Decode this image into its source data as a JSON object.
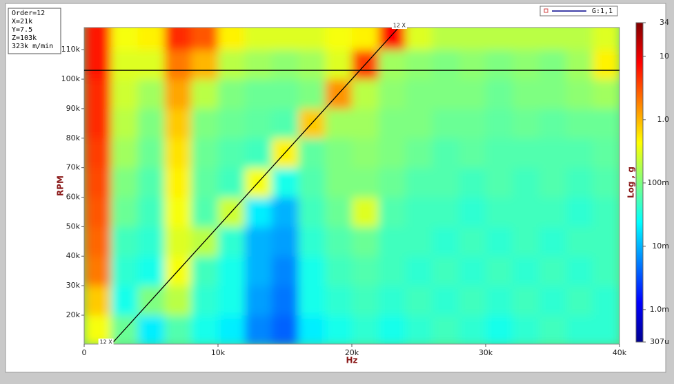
{
  "chart_data": {
    "type": "heatmap",
    "info_lines": [
      "Order=12",
      "X=21k",
      "Y=7.5",
      "Z=103k",
      "323k m/min"
    ],
    "legend": {
      "name": "G:1,1",
      "color": "#00008b"
    },
    "xlabel": "Hz",
    "ylabel": "RPM",
    "zlabel": "Log , g",
    "xlim": [
      0,
      40000
    ],
    "ylim": [
      10200,
      117500
    ],
    "xticks": [
      0,
      {
        "value": 10000,
        "label": "10k"
      },
      {
        "value": 20000,
        "label": "20k"
      },
      {
        "value": 30000,
        "label": "30k"
      },
      {
        "value": 40000,
        "label": "40k"
      }
    ],
    "yticks": [
      {
        "value": 20000,
        "label": "20k"
      },
      {
        "value": 30000,
        "label": "30k"
      },
      {
        "value": 40000,
        "label": "40k"
      },
      {
        "value": 50000,
        "label": "50k"
      },
      {
        "value": 60000,
        "label": "60k"
      },
      {
        "value": 70000,
        "label": "70k"
      },
      {
        "value": 80000,
        "label": "80k"
      },
      {
        "value": 90000,
        "label": "90k"
      },
      {
        "value": 100000,
        "label": "100k"
      },
      {
        "value": 110000,
        "label": "110k"
      }
    ],
    "zscale": "log",
    "zlim": [
      0.000307,
      34
    ],
    "zticks": [
      34,
      10,
      {
        "value": 1,
        "label": "1.0"
      },
      {
        "value": 0.1,
        "label": "100m"
      },
      {
        "value": 0.01,
        "label": "10m"
      },
      {
        "value": 0.001,
        "label": "1.0m"
      },
      {
        "value": 0.000307,
        "label": "307u"
      }
    ],
    "x_bins": [
      0,
      2000,
      4000,
      6000,
      8000,
      10000,
      12000,
      14000,
      16000,
      18000,
      20000,
      22000,
      24000,
      26000,
      28000,
      30000,
      32000,
      34000,
      36000,
      38000,
      40000
    ],
    "y_bins": [
      10000,
      20000,
      30000,
      40000,
      50000,
      60000,
      70000,
      80000,
      90000,
      100000,
      110000,
      120000
    ],
    "z": [
      [
        0.4,
        0.08,
        0.02,
        0.06,
        0.03,
        0.02,
        0.006,
        0.004,
        0.02,
        0.03,
        0.04,
        0.03,
        0.04,
        0.05,
        0.04,
        0.03,
        0.04,
        0.05,
        0.04,
        0.04
      ],
      [
        0.8,
        0.03,
        0.1,
        0.2,
        0.04,
        0.03,
        0.008,
        0.005,
        0.03,
        0.04,
        0.05,
        0.04,
        0.05,
        0.04,
        0.05,
        0.04,
        0.05,
        0.04,
        0.05,
        0.04
      ],
      [
        2,
        0.04,
        0.03,
        0.4,
        0.05,
        0.03,
        0.01,
        0.006,
        0.03,
        0.05,
        0.06,
        0.05,
        0.04,
        0.05,
        0.04,
        0.05,
        0.04,
        0.05,
        0.04,
        0.05
      ],
      [
        2.5,
        0.05,
        0.04,
        0.3,
        0.2,
        0.04,
        0.01,
        0.008,
        0.04,
        0.06,
        0.08,
        0.05,
        0.05,
        0.04,
        0.05,
        0.04,
        0.05,
        0.04,
        0.05,
        0.05
      ],
      [
        3,
        0.08,
        0.05,
        0.4,
        0.06,
        0.25,
        0.02,
        0.01,
        0.05,
        0.08,
        0.3,
        0.06,
        0.05,
        0.05,
        0.04,
        0.05,
        0.05,
        0.05,
        0.04,
        0.05
      ],
      [
        3.5,
        0.1,
        0.06,
        0.5,
        0.07,
        0.05,
        0.4,
        0.03,
        0.06,
        0.1,
        0.1,
        0.08,
        0.06,
        0.06,
        0.05,
        0.06,
        0.05,
        0.06,
        0.05,
        0.06
      ],
      [
        4,
        0.15,
        0.08,
        0.6,
        0.08,
        0.06,
        0.05,
        0.5,
        0.07,
        0.1,
        0.12,
        0.1,
        0.08,
        0.06,
        0.07,
        0.06,
        0.06,
        0.06,
        0.06,
        0.07
      ],
      [
        5,
        0.2,
        0.1,
        0.8,
        0.1,
        0.08,
        0.07,
        0.06,
        0.8,
        0.15,
        0.15,
        0.1,
        0.1,
        0.08,
        0.08,
        0.07,
        0.08,
        0.07,
        0.08,
        0.08
      ],
      [
        5,
        0.25,
        0.15,
        1.2,
        0.2,
        0.1,
        0.08,
        0.08,
        0.1,
        1.5,
        0.2,
        0.12,
        0.1,
        0.1,
        0.1,
        0.08,
        0.1,
        0.1,
        0.12,
        0.15
      ],
      [
        6,
        0.3,
        0.3,
        2,
        1,
        0.2,
        0.15,
        0.12,
        0.15,
        0.3,
        4,
        0.15,
        0.12,
        0.1,
        0.12,
        0.1,
        0.12,
        0.1,
        0.15,
        0.5
      ],
      [
        6,
        0.4,
        0.5,
        5,
        3,
        0.5,
        0.3,
        0.3,
        0.3,
        0.4,
        0.5,
        8,
        0.3,
        0.2,
        0.2,
        0.2,
        0.2,
        0.2,
        0.2,
        0.3
      ]
    ],
    "order_line": {
      "label": "12 X",
      "x": [
        2040,
        23500
      ],
      "y": [
        10200,
        117500
      ],
      "color": "#000000"
    },
    "cursor": {
      "y": 103000,
      "color": "#000000"
    }
  }
}
